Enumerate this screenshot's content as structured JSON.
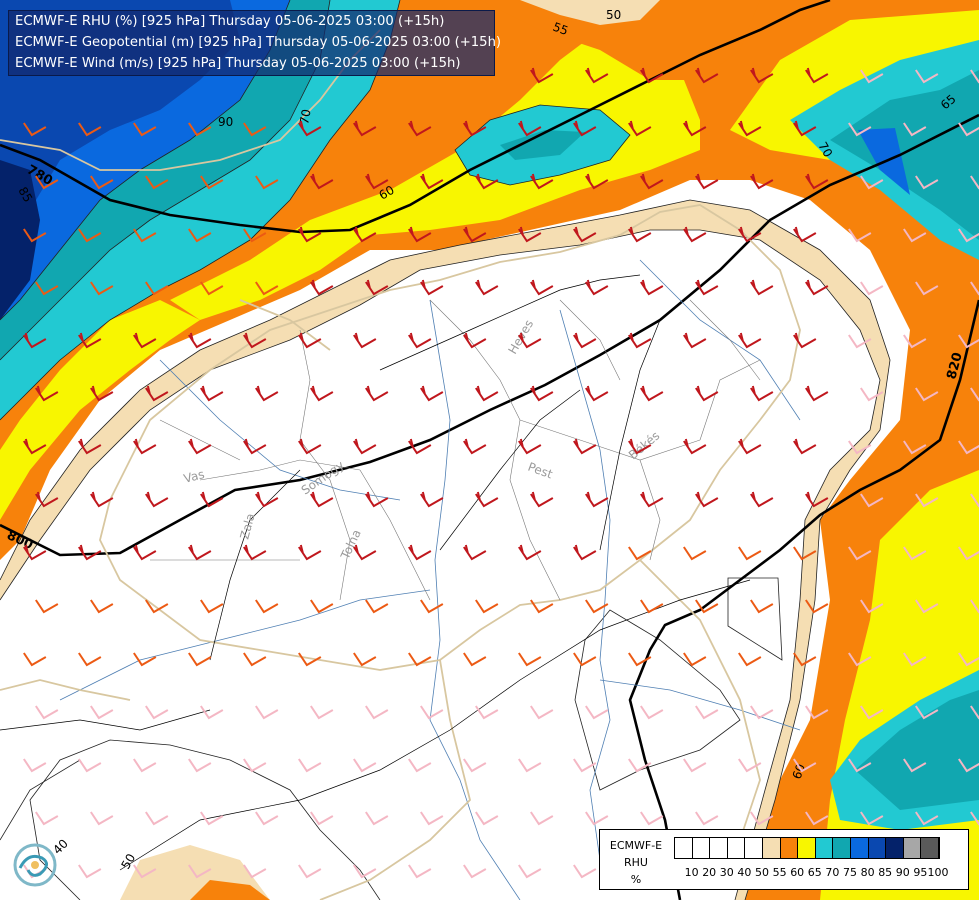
{
  "title_lines": [
    "ECMWF-E RHU (%) [925 hPa] Thursday 05-06-2025 03:00 (+15h)",
    "ECMWF-E Geopotential (m) [925 hPa] Thursday 05-06-2025 03:00 (+15h)",
    "ECMWF-E Wind (m/s) [925 hPa] Thursday 05-06-2025 03:00 (+15h)"
  ],
  "legend": {
    "label_lines": [
      "ECMWF-E",
      "RHU",
      "%"
    ],
    "classes": [
      {
        "label": "10",
        "color": "#ffffff"
      },
      {
        "label": "20",
        "color": "#ffffff"
      },
      {
        "label": "30",
        "color": "#ffffff"
      },
      {
        "label": "40",
        "color": "#ffffff"
      },
      {
        "label": "50",
        "color": "#ffffff"
      },
      {
        "label": "55",
        "color": "#f5deb3"
      },
      {
        "label": "60",
        "color": "#f7820b"
      },
      {
        "label": "65",
        "color": "#f8f600"
      },
      {
        "label": "70",
        "color": "#22c9d2"
      },
      {
        "label": "75",
        "color": "#11a7b0"
      },
      {
        "label": "80",
        "color": "#0a69df"
      },
      {
        "label": "85",
        "color": "#0a48b0"
      },
      {
        "label": "90",
        "color": "#04226a"
      },
      {
        "label": "95",
        "color": "#a7a7a7"
      },
      {
        "label": "100",
        "color": "#5a5a5a"
      }
    ]
  },
  "map": {
    "contour_labels_rhu": [
      "50",
      "55",
      "90",
      "70",
      "85",
      "60",
      "70",
      "65",
      "60",
      "40",
      "50"
    ],
    "geopotential_labels": [
      "780",
      "800",
      "820"
    ],
    "region_labels": [
      "Heves",
      "Vas",
      "Somogy",
      "Zala",
      "Tolna",
      "Pest",
      "Békés"
    ],
    "colors": {
      "white_zone": "#ffffff",
      "wheat": "#f5deb3",
      "orange": "#f7820b",
      "yellow": "#f8f600",
      "cyan": "#22c9d2",
      "teal": "#11a7b0",
      "blue": "#0a69df",
      "darkblue": "#0a48b0",
      "navy": "#04226a",
      "wind_strong": "#c0171d",
      "wind_medium": "#ec5a14",
      "wind_light": "#f4b7c4",
      "wind_other": "#d8f0f6",
      "rivers": "#4f7fb3",
      "borders_country": "#d8c7a0",
      "borders_county": "#808080"
    }
  }
}
